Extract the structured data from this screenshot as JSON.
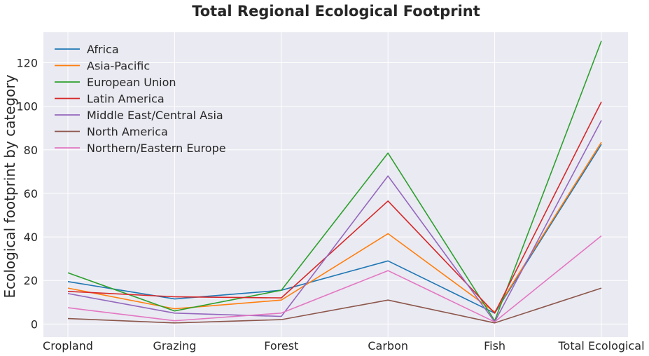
{
  "chart_data": {
    "type": "line",
    "title": "Total Regional Ecological Footprint",
    "xlabel": "",
    "ylabel": "Ecological footprint by category",
    "categories": [
      "Cropland",
      "Grazing",
      "Forest",
      "Carbon",
      "Fish",
      "Total Ecological"
    ],
    "ylim": [
      -6,
      134
    ],
    "yticks": [
      0,
      20,
      40,
      60,
      80,
      100,
      120
    ],
    "grid": true,
    "legend_position": "top-left",
    "series": [
      {
        "name": "Africa",
        "color": "#1f77b4",
        "values": [
          19.5,
          11.5,
          15.5,
          29,
          5,
          82.5
        ]
      },
      {
        "name": "Asia-Pacific",
        "color": "#ff7f0e",
        "values": [
          16.5,
          7,
          11,
          41.5,
          5.5,
          83.5
        ]
      },
      {
        "name": "European Union",
        "color": "#2ca02c",
        "values": [
          23.5,
          6,
          15.5,
          78.5,
          1.5,
          130
        ]
      },
      {
        "name": "Latin America",
        "color": "#d62728",
        "values": [
          15,
          12.5,
          12,
          56.5,
          5,
          102
        ]
      },
      {
        "name": "Middle East/Central Asia",
        "color": "#9467bd",
        "values": [
          14,
          5,
          3.5,
          68,
          1,
          93.5
        ]
      },
      {
        "name": "North America",
        "color": "#8c564b",
        "values": [
          2.5,
          0.5,
          2,
          11,
          0.5,
          16.5
        ]
      },
      {
        "name": "Northern/Eastern Europe",
        "color": "#e377c2",
        "values": [
          7.5,
          1.5,
          5,
          24.5,
          1,
          40.5
        ]
      }
    ]
  }
}
